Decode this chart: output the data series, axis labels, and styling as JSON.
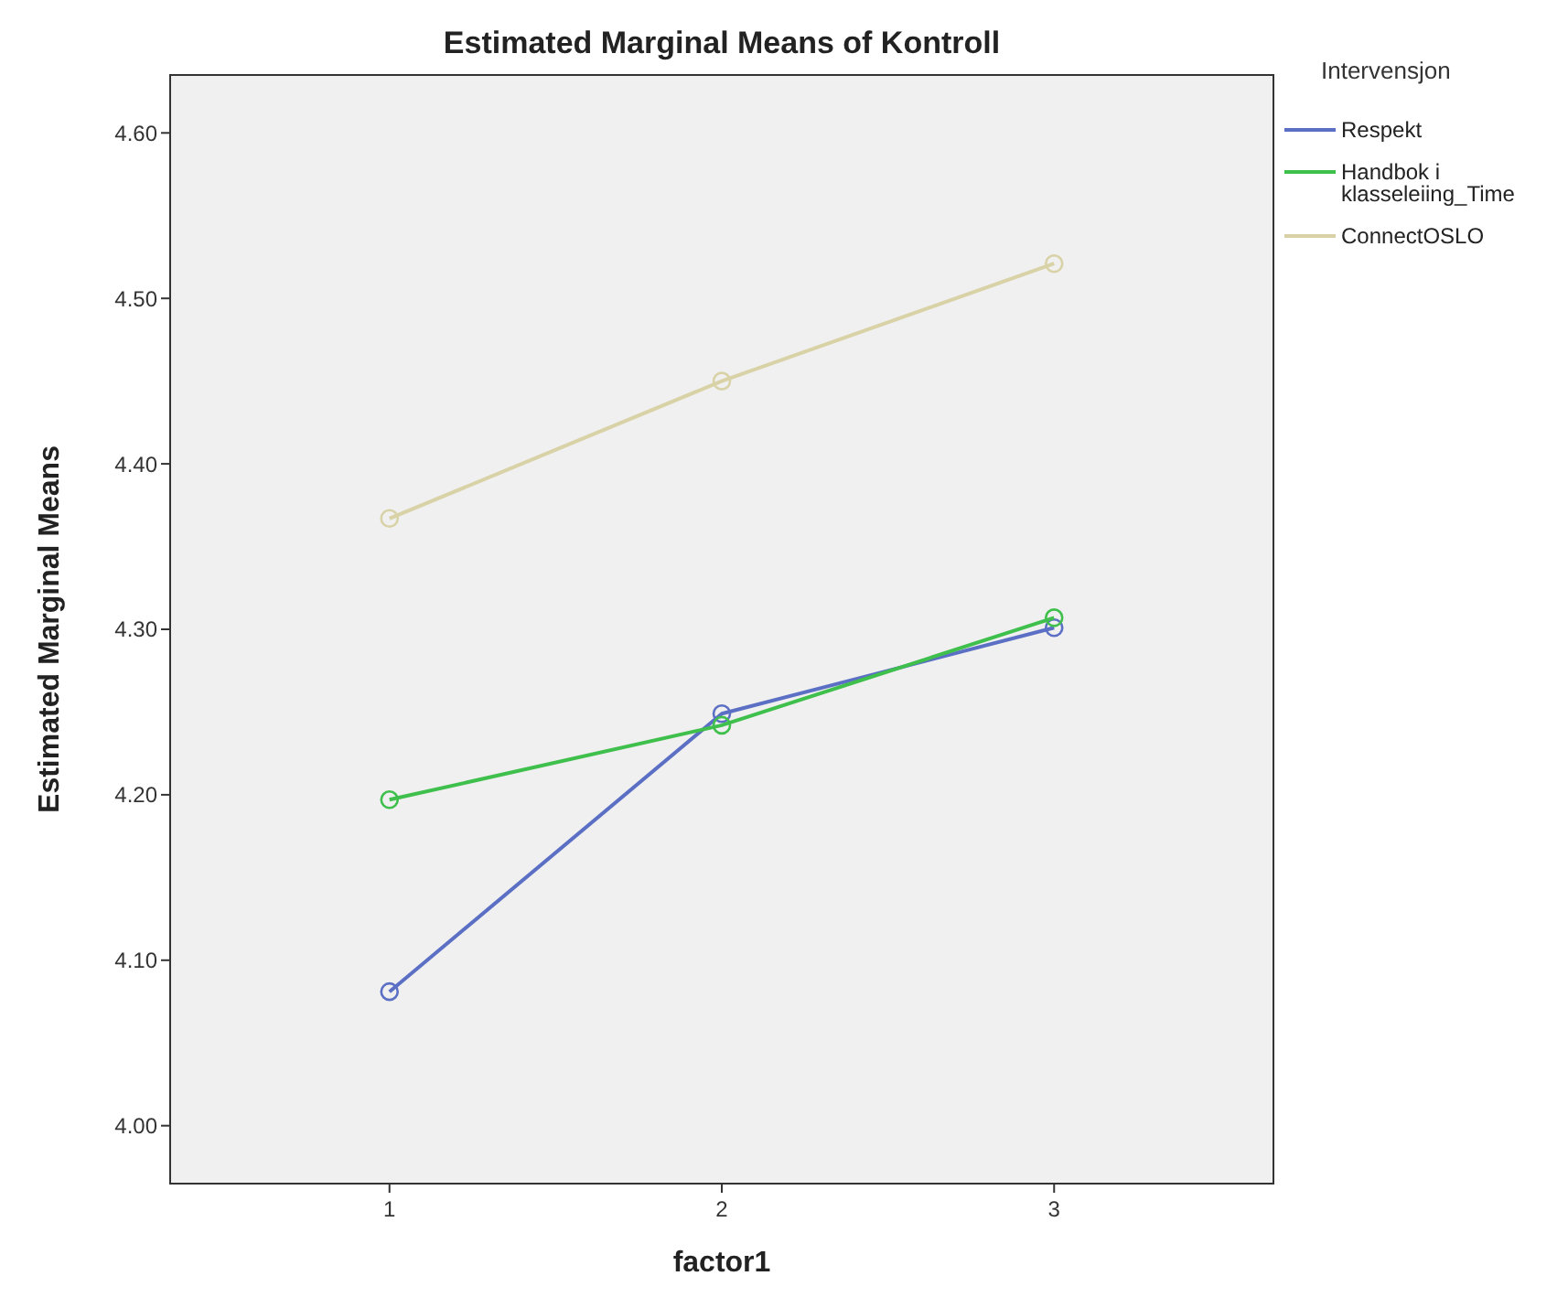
{
  "chart_data": {
    "type": "line",
    "title": "Estimated Marginal Means of Kontroll",
    "xlabel": "factor1",
    "ylabel": "Estimated Marginal Means",
    "legend_title": "Intervensjon",
    "x": [
      1,
      2,
      3
    ],
    "series": [
      {
        "name": "Respekt",
        "color": "#5b6fc4",
        "values": [
          4.081,
          4.249,
          4.301
        ]
      },
      {
        "name": "Handbok i klasseleiing_Time",
        "color": "#3fbf4c",
        "values": [
          4.197,
          4.242,
          4.307
        ]
      },
      {
        "name": "ConnectOSLO",
        "color": "#d8d2a6",
        "values": [
          4.367,
          4.45,
          4.521
        ]
      }
    ],
    "xlim": [
      0.34,
      3.66
    ],
    "ylim": [
      3.965,
      4.635
    ],
    "xticks": [
      1,
      2,
      3
    ],
    "yticks": [
      {
        "value": 4,
        "label": "4.00"
      },
      {
        "value": 4.1,
        "label": "4.10"
      },
      {
        "value": 4.2,
        "label": "4.20"
      },
      {
        "value": 4.3,
        "label": "4.30"
      },
      {
        "value": 4.4,
        "label": "4.40"
      },
      {
        "value": 4.5,
        "label": "4.50"
      },
      {
        "value": 4.6,
        "label": "4.60"
      }
    ],
    "grid": false,
    "legend": "top right",
    "marker": "circle",
    "line_style": "solid"
  }
}
